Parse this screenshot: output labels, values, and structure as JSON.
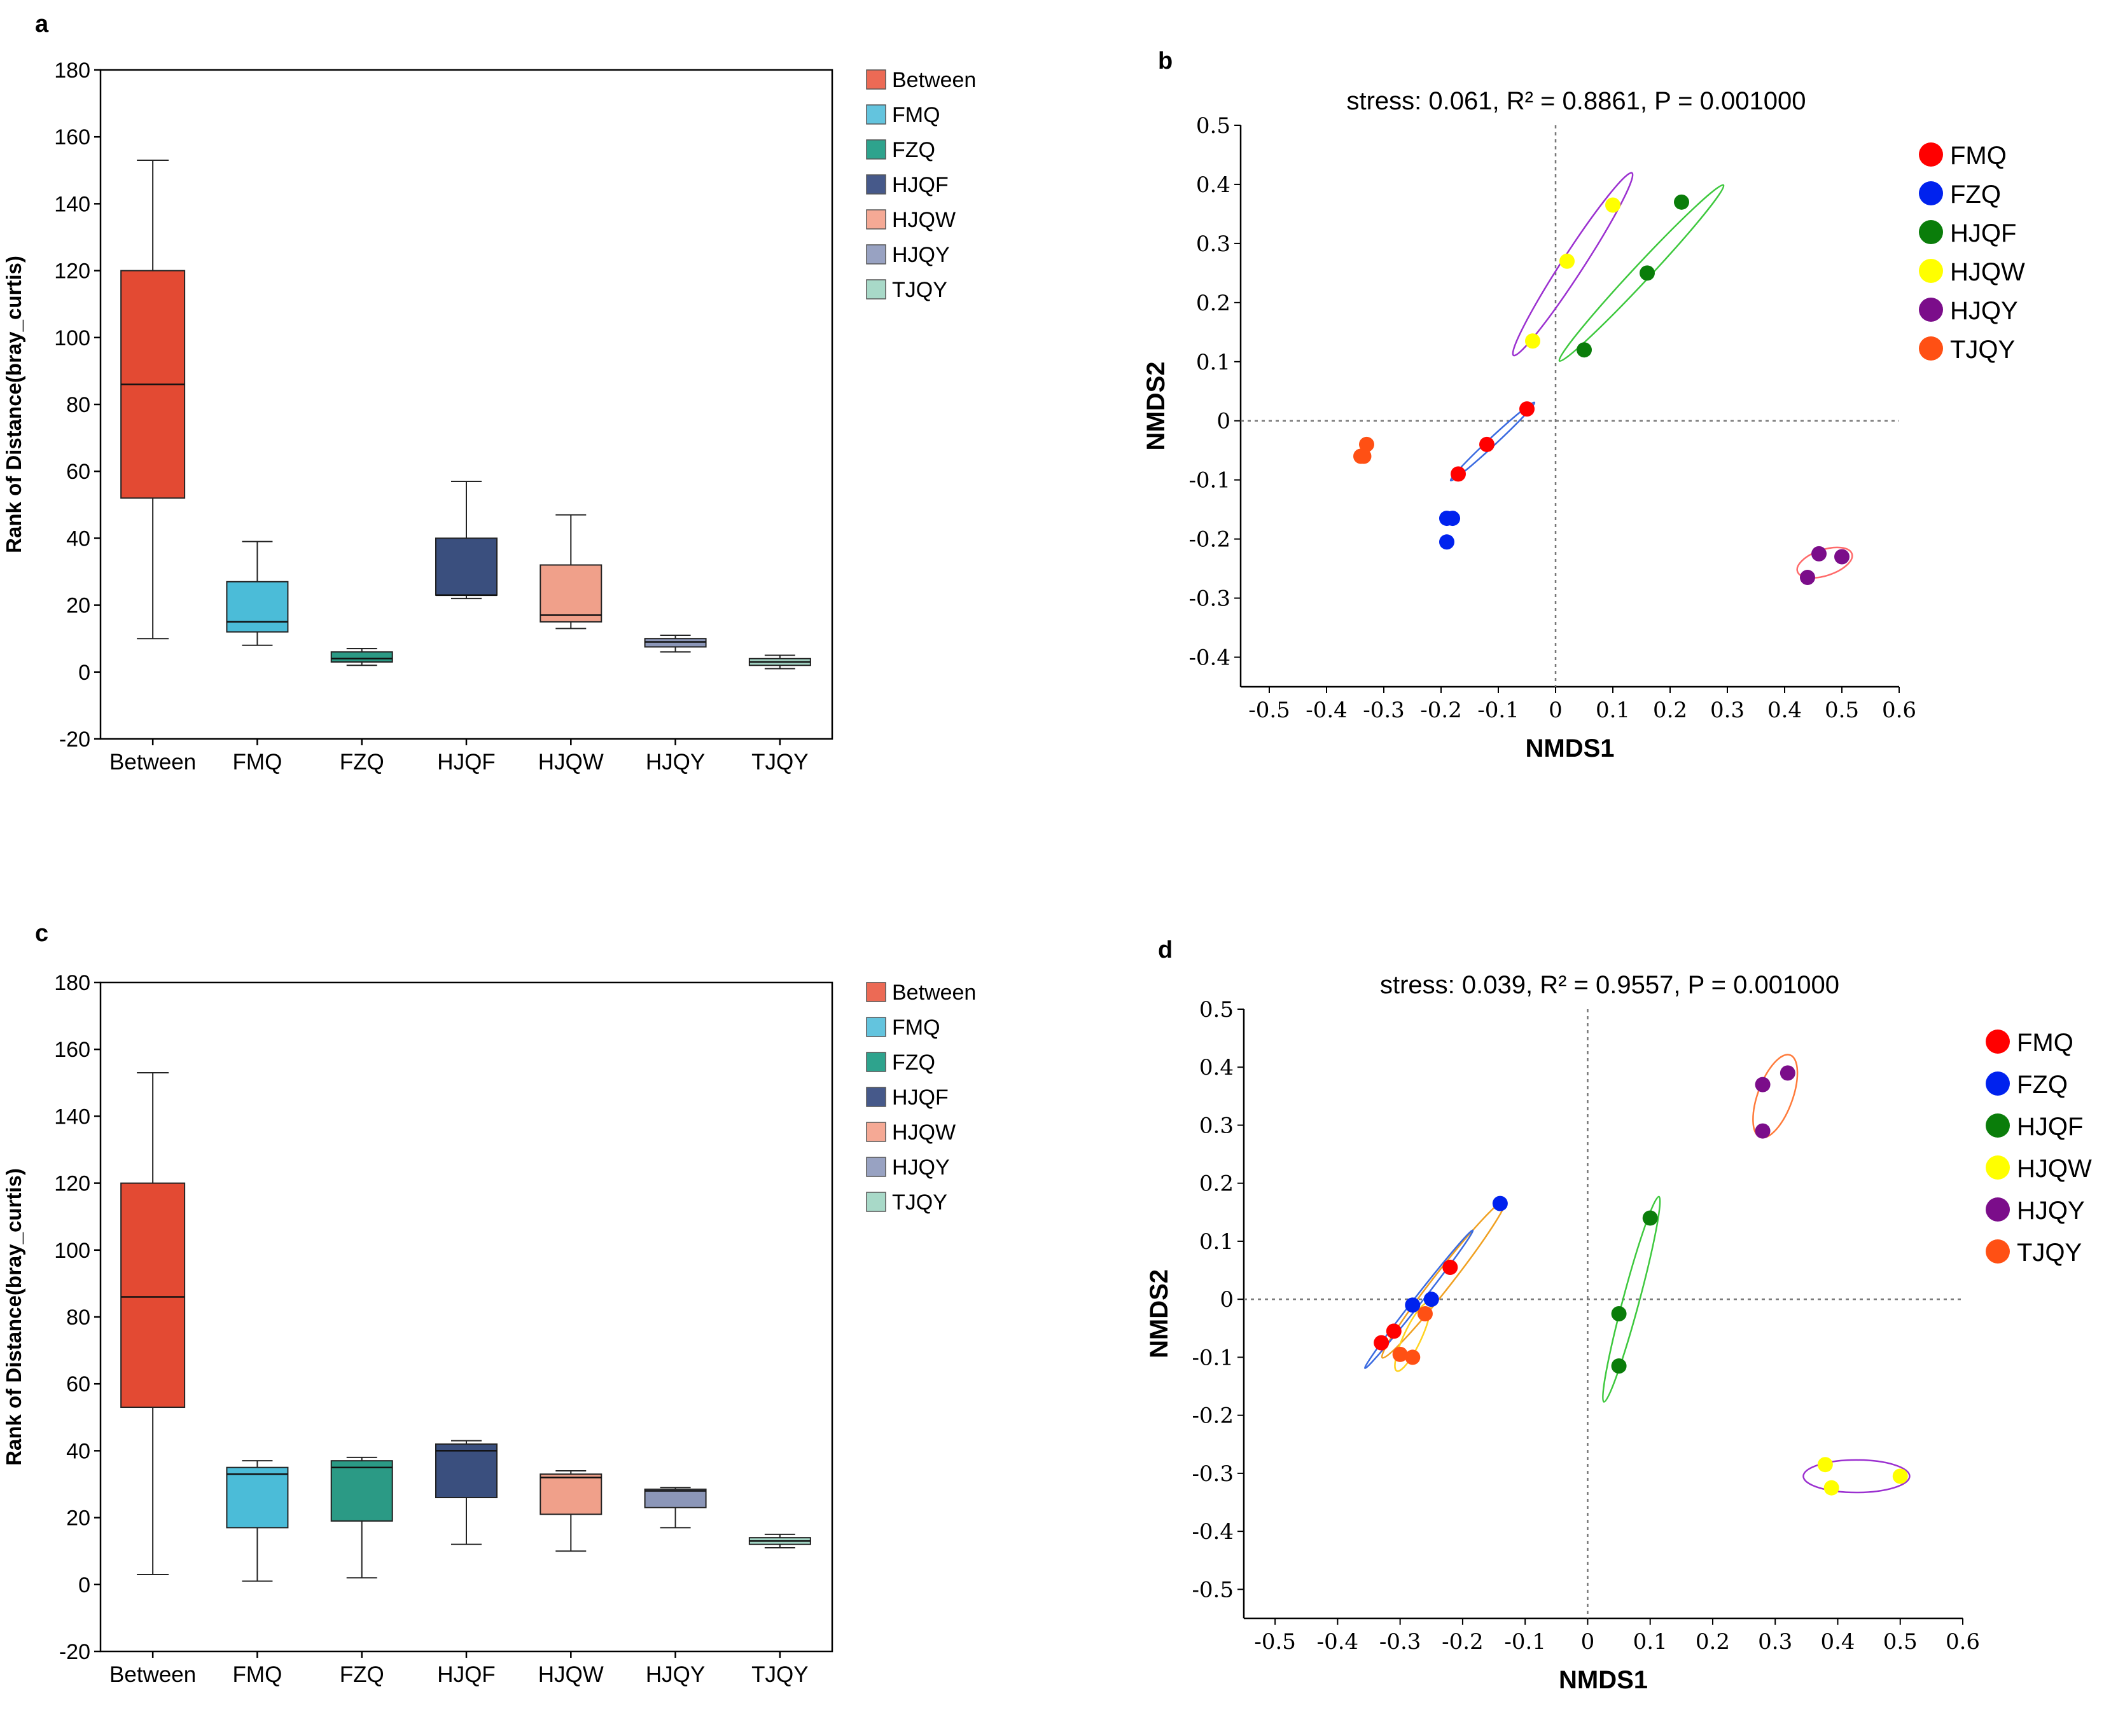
{
  "figure": {
    "panels": [
      "a",
      "b",
      "c",
      "d"
    ]
  },
  "chart_data": [
    {
      "panel": "a",
      "type": "box",
      "ylabel": "Rank of Distance(bray_curtis)",
      "ylim": [
        -20,
        180
      ],
      "yticks": [
        -20,
        0,
        20,
        40,
        60,
        80,
        100,
        120,
        140,
        160,
        180
      ],
      "categories": [
        "Between",
        "FMQ",
        "FZQ",
        "HJQF",
        "HJQW",
        "HJQY",
        "TJQY"
      ],
      "colors": [
        "#e34a33",
        "#4bbcd8",
        "#2b9a85",
        "#3a4f7e",
        "#f0a08a",
        "#8b96b8",
        "#a2d4c4"
      ],
      "legend_colors": [
        "#ec6a55",
        "#63c4de",
        "#2ea38d",
        "#46598a",
        "#f5a995",
        "#98a2c2",
        "#a8d9c8"
      ],
      "legend": [
        "Between",
        "FMQ",
        "FZQ",
        "HJQF",
        "HJQW",
        "HJQY",
        "TJQY"
      ],
      "boxes": [
        {
          "min": 10,
          "q1": 52,
          "median": 86,
          "q3": 120,
          "max": 153
        },
        {
          "min": 8,
          "q1": 12,
          "median": 15,
          "q3": 27,
          "max": 39
        },
        {
          "min": 2,
          "q1": 3,
          "median": 4,
          "q3": 6,
          "max": 7
        },
        {
          "min": 22,
          "q1": 23,
          "median": 23,
          "q3": 40,
          "max": 57
        },
        {
          "min": 13,
          "q1": 15,
          "median": 17,
          "q3": 32,
          "max": 47
        },
        {
          "min": 6,
          "q1": 7.5,
          "median": 9,
          "q3": 10,
          "max": 11
        },
        {
          "min": 1,
          "q1": 2,
          "median": 3,
          "q3": 4,
          "max": 5
        }
      ]
    },
    {
      "panel": "b",
      "type": "scatter",
      "title": "stress: 0.061, R² = 0.8861, P = 0.001000",
      "xlabel": "NMDS1",
      "ylabel": "NMDS2",
      "xlim": [
        -0.55,
        0.6
      ],
      "ylim": [
        -0.45,
        0.5
      ],
      "xticks": [
        -0.5,
        -0.4,
        -0.3,
        -0.2,
        -0.1,
        0,
        0.1,
        0.2,
        0.3,
        0.4,
        0.5,
        0.6
      ],
      "xtick_labels": [
        "-0.5",
        "-0.4",
        "-0.3",
        "-0.2",
        "-0.1",
        "0",
        "0.1",
        "0.2",
        "0.3",
        "0.4",
        "0.5",
        "0.6"
      ],
      "yticks": [
        -0.4,
        -0.3,
        -0.2,
        -0.1,
        0,
        0.1,
        0.2,
        0.3,
        0.4,
        0.5
      ],
      "ytick_labels": [
        "-0.4",
        "-0.3",
        "-0.2",
        "-0.1",
        "0",
        "0.1",
        "0.2",
        "0.3",
        "0.4",
        "0.5"
      ],
      "series": [
        {
          "name": "FMQ",
          "color": "#ff0000",
          "points": [
            [
              -0.05,
              0.02
            ],
            [
              -0.12,
              -0.04
            ],
            [
              -0.17,
              -0.09
            ]
          ]
        },
        {
          "name": "FZQ",
          "color": "#0022ee",
          "points": [
            [
              -0.19,
              -0.165
            ],
            [
              -0.18,
              -0.165
            ],
            [
              -0.19,
              -0.205
            ]
          ]
        },
        {
          "name": "HJQF",
          "color": "#0a7d0a",
          "points": [
            [
              0.22,
              0.37
            ],
            [
              0.16,
              0.25
            ],
            [
              0.05,
              0.12
            ]
          ]
        },
        {
          "name": "HJQW",
          "color": "#ffff00",
          "points": [
            [
              0.1,
              0.365
            ],
            [
              0.02,
              0.27
            ],
            [
              -0.04,
              0.135
            ]
          ]
        },
        {
          "name": "HJQY",
          "color": "#7b0d8a",
          "points": [
            [
              0.46,
              -0.225
            ],
            [
              0.5,
              -0.23
            ],
            [
              0.44,
              -0.265
            ]
          ]
        },
        {
          "name": "TJQY",
          "color": "#ff5014",
          "points": [
            [
              -0.33,
              -0.04
            ],
            [
              -0.335,
              -0.06
            ],
            [
              -0.34,
              -0.06
            ]
          ]
        }
      ],
      "ellipses": [
        {
          "series": "HJQW",
          "stroke": "#9b30d0",
          "cx": 0.03,
          "cy": 0.265,
          "rx": 0.19,
          "ry": 0.018,
          "angle_deg": 57
        },
        {
          "series": "HJQF",
          "stroke": "#3dc83d",
          "cx": 0.15,
          "cy": 0.25,
          "rx": 0.21,
          "ry": 0.014,
          "angle_deg": 47
        },
        {
          "series": "FMQ",
          "stroke": "#3a6ae0",
          "cx": -0.11,
          "cy": -0.035,
          "rx": 0.1,
          "ry": 0.004,
          "angle_deg": 43
        },
        {
          "series": "HJQY",
          "stroke": "#ff6a6a",
          "cx": 0.47,
          "cy": -0.24,
          "rx": 0.05,
          "ry": 0.022,
          "angle_deg": 18
        }
      ],
      "legend_position": "right"
    },
    {
      "panel": "c",
      "type": "box",
      "ylabel": "Rank of Distance(bray_curtis)",
      "ylim": [
        -20,
        180
      ],
      "yticks": [
        -20,
        0,
        20,
        40,
        60,
        80,
        100,
        120,
        140,
        160,
        180
      ],
      "categories": [
        "Between",
        "FMQ",
        "FZQ",
        "HJQF",
        "HJQW",
        "HJQY",
        "TJQY"
      ],
      "colors": [
        "#e34a33",
        "#4bbcd8",
        "#2b9a85",
        "#3a4f7e",
        "#f0a08a",
        "#8b96b8",
        "#a2d4c4"
      ],
      "legend_colors": [
        "#ec6a55",
        "#63c4de",
        "#2ea38d",
        "#46598a",
        "#f5a995",
        "#98a2c2",
        "#a8d9c8"
      ],
      "legend": [
        "Between",
        "FMQ",
        "FZQ",
        "HJQF",
        "HJQW",
        "HJQY",
        "TJQY"
      ],
      "boxes": [
        {
          "min": 3,
          "q1": 53,
          "median": 86,
          "q3": 120,
          "max": 153
        },
        {
          "min": 1,
          "q1": 17,
          "median": 33,
          "q3": 35,
          "max": 37
        },
        {
          "min": 2,
          "q1": 19,
          "median": 35,
          "q3": 37,
          "max": 38
        },
        {
          "min": 12,
          "q1": 26,
          "median": 40,
          "q3": 42,
          "max": 43
        },
        {
          "min": 10,
          "q1": 21,
          "median": 32,
          "q3": 33,
          "max": 34
        },
        {
          "min": 17,
          "q1": 23,
          "median": 28,
          "q3": 28.5,
          "max": 29
        },
        {
          "min": 11,
          "q1": 12,
          "median": 13,
          "q3": 14,
          "max": 15
        }
      ]
    },
    {
      "panel": "d",
      "type": "scatter",
      "title": "stress: 0.039, R² = 0.9557, P = 0.001000",
      "xlabel": "NMDS1",
      "ylabel": "NMDS2",
      "xlim": [
        -0.55,
        0.6
      ],
      "ylim": [
        -0.55,
        0.5
      ],
      "xticks": [
        -0.5,
        -0.4,
        -0.3,
        -0.2,
        -0.1,
        0,
        0.1,
        0.2,
        0.3,
        0.4,
        0.5,
        0.6
      ],
      "xtick_labels": [
        "-0.5",
        "-0.4",
        "-0.3",
        "-0.2",
        "-0.1",
        "0",
        "0.1",
        "0.2",
        "0.3",
        "0.4",
        "0.5",
        "0.6"
      ],
      "yticks": [
        -0.5,
        -0.4,
        -0.3,
        -0.2,
        -0.1,
        0,
        0.1,
        0.2,
        0.3,
        0.4,
        0.5
      ],
      "ytick_labels": [
        "-0.5",
        "-0.4",
        "-0.3",
        "-0.2",
        "-0.1",
        "0",
        "0.1",
        "0.2",
        "0.3",
        "0.4",
        "0.5"
      ],
      "series": [
        {
          "name": "FMQ",
          "color": "#ff0000",
          "points": [
            [
              -0.22,
              0.055
            ],
            [
              -0.31,
              -0.055
            ],
            [
              -0.33,
              -0.075
            ]
          ]
        },
        {
          "name": "FZQ",
          "color": "#0022ee",
          "points": [
            [
              -0.14,
              0.165
            ],
            [
              -0.25,
              0.0
            ],
            [
              -0.28,
              -0.01
            ]
          ]
        },
        {
          "name": "HJQF",
          "color": "#0a7d0a",
          "points": [
            [
              0.1,
              0.14
            ],
            [
              0.05,
              -0.025
            ],
            [
              0.05,
              -0.115
            ]
          ]
        },
        {
          "name": "HJQW",
          "color": "#ffff00",
          "points": [
            [
              0.38,
              -0.285
            ],
            [
              0.39,
              -0.325
            ],
            [
              0.5,
              -0.305
            ]
          ]
        },
        {
          "name": "HJQY",
          "color": "#7b0d8a",
          "points": [
            [
              0.32,
              0.39
            ],
            [
              0.28,
              0.37
            ],
            [
              0.28,
              0.29
            ]
          ]
        },
        {
          "name": "TJQY",
          "color": "#ff5014",
          "points": [
            [
              -0.26,
              -0.025
            ],
            [
              -0.3,
              -0.095
            ],
            [
              -0.28,
              -0.1
            ]
          ]
        }
      ],
      "ellipses": [
        {
          "series": "FZQ",
          "stroke": "#f0a020",
          "cx": -0.23,
          "cy": 0.035,
          "rx": 0.16,
          "ry": 0.015,
          "angle_deg": 52
        },
        {
          "series": "FMQ",
          "stroke": "#3a6ae0",
          "cx": -0.27,
          "cy": 0.0,
          "rx": 0.14,
          "ry": 0.005,
          "angle_deg": 52
        },
        {
          "series": "TJQY",
          "stroke": "#ffd21e",
          "cx": -0.28,
          "cy": -0.065,
          "rx": 0.06,
          "ry": 0.015,
          "angle_deg": 65
        },
        {
          "series": "HJQF",
          "stroke": "#3dc83d",
          "cx": 0.07,
          "cy": 0.0,
          "rx": 0.17,
          "ry": 0.014,
          "angle_deg": 75
        },
        {
          "series": "HJQY",
          "stroke": "#ff7a3a",
          "cx": 0.3,
          "cy": 0.35,
          "rx": 0.07,
          "ry": 0.03,
          "angle_deg": 70
        },
        {
          "series": "HJQW",
          "stroke": "#9b30d0",
          "cx": 0.43,
          "cy": -0.305,
          "rx": 0.085,
          "ry": 0.028,
          "angle_deg": 0
        }
      ],
      "legend_position": "right"
    }
  ]
}
